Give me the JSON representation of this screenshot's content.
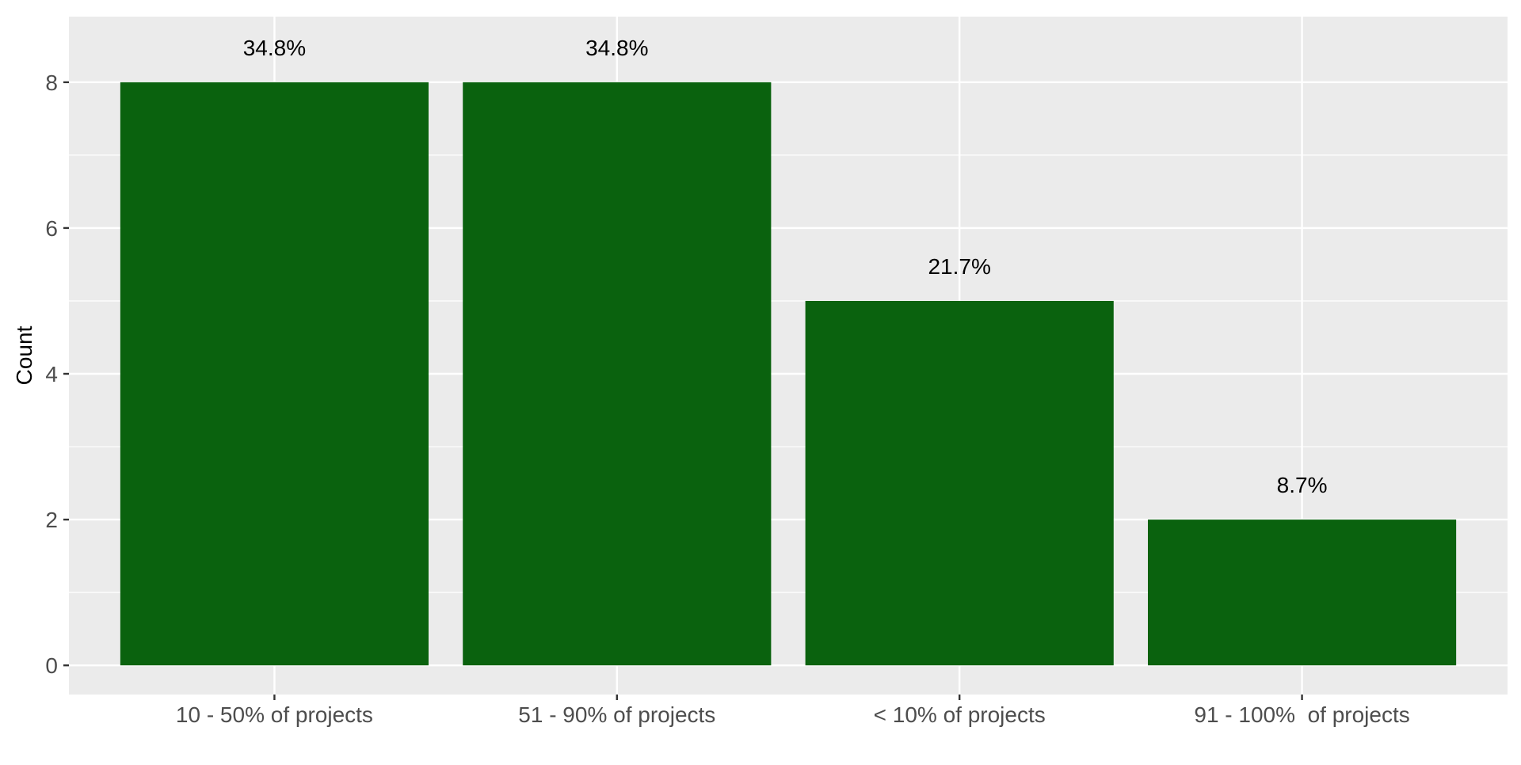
{
  "chart_data": {
    "type": "bar",
    "categories": [
      "10 - 50% of projects",
      "51 - 90% of projects",
      "< 10% of projects",
      "91 - 100%  of projects"
    ],
    "values": [
      8,
      8,
      5,
      2
    ],
    "data_labels": [
      "34.8%",
      "34.8%",
      "21.7%",
      "8.7%"
    ],
    "title": "",
    "xlabel": "",
    "ylabel": "Count",
    "ylim": [
      -0.4,
      8.9
    ],
    "yticks": [
      0,
      2,
      4,
      6,
      8
    ],
    "grid": true,
    "bar_color": "#0a620e",
    "panel_background": "#ebebeb",
    "grid_color": "#ffffff"
  }
}
